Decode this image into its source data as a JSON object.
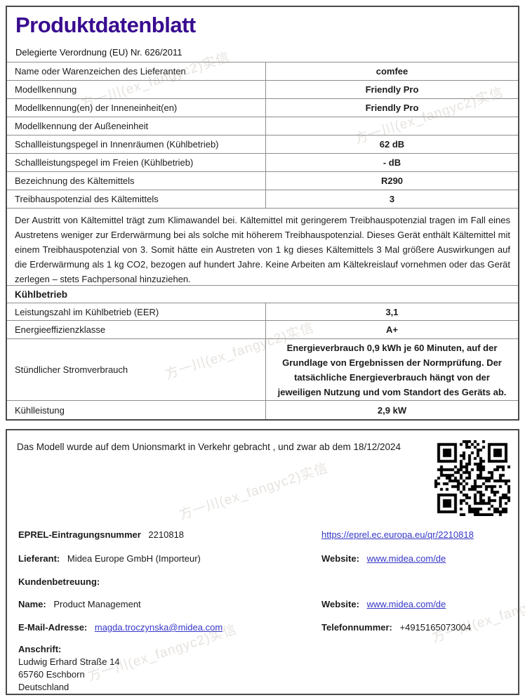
{
  "watermark": {
    "text": "方一川(ex_fangyc2)实信"
  },
  "colors": {
    "title_purple": "#390c8f",
    "link_blue": "#3636c8",
    "border_gray": "#8d8d8d",
    "outer_border": "#4a4a4a"
  },
  "header": {
    "title": "Produktdatenblatt",
    "subtitle": "Delegierte Verordnung (EU) Nr. 626/2011"
  },
  "spec_table": {
    "rows": [
      {
        "label": "Name oder Warenzeichen des Lieferanten",
        "value": "comfee"
      },
      {
        "label": "Modellkennung",
        "value": "Friendly Pro"
      },
      {
        "label": "Modellkennung(en) der Inneneinheit(en)",
        "value": "Friendly Pro"
      },
      {
        "label": "Modellkennung der Außeneinheit",
        "value": ""
      },
      {
        "label": "Schallleistungspegel in Innenräumen (Kühlbetrieb)",
        "value": "62 dB"
      },
      {
        "label": "Schallleistungspegel im Freien (Kühlbetrieb)",
        "value": "- dB"
      },
      {
        "label": "Bezeichnung des Kältemittels",
        "value": "R290"
      },
      {
        "label": "Treibhauspotenzial des Kältemittels",
        "value": "3"
      }
    ],
    "refrigerant_note": "Der Austritt von Kältemittel trägt zum Klimawandel bei. Kältemittel mit geringerem Treibhauspotenzial tragen im Fall eines Austretens weniger zur Erderwärmung bei als solche mit höherem Treibhauspotenzial. Dieses Gerät enthält Kältemittel mit einem Treibhauspotenzial von 3. Somit hätte ein Austreten von 1 kg dieses Kältemittels 3 Mal größere Auswirkungen auf die Erderwärmung als 1 kg CO2, bezogen auf hundert Jahre. Keine Arbeiten am Kältekreislauf vornehmen oder das Gerät zerlegen – stets Fachpersonal hinzuziehen."
  },
  "cooling_section": {
    "header": "Kühlbetrieb",
    "rows": [
      {
        "label": "Leistungszahl im Kühlbetrieb (EER)",
        "value": "3,1"
      },
      {
        "label": "Energieeffizienzklasse",
        "value": "A+"
      },
      {
        "label": "Stündlicher Stromverbrauch",
        "value": "Energieverbrauch 0,9 kWh je 60 Minuten, auf der Grundlage von Ergebnissen der Normprüfung. Der tatsächliche Energieverbrauch hängt von der jeweiligen Nutzung und vom Standort des Geräts ab."
      },
      {
        "label": "Kühlleistung",
        "value": "2,9 kW"
      }
    ]
  },
  "market_info": {
    "statement": "Das Modell wurde auf dem Unionsmarkt in Verkehr gebracht , und zwar ab dem 18/12/2024",
    "qr_icon": "qr-code",
    "eprel_label": "EPREL-Eintragungsnummer",
    "eprel_number": "2210818",
    "eprel_link": "https://eprel.ec.europa.eu/qr/2210818",
    "supplier_label": "Lieferant:",
    "supplier_value": "Midea Europe GmbH (Importeur)",
    "website_label": "Website:",
    "website_value": "www.midea.com/de",
    "customer_care_label": "Kundenbetreuung:",
    "name_label": "Name:",
    "name_value": "Product Management",
    "website2_label": "Website:",
    "website2_value": "www.midea.com/de",
    "email_label": "E-Mail-Adresse:",
    "email_value": "magda.troczynska@midea.com",
    "phone_label": "Telefonnummer:",
    "phone_value": "+4915165073004",
    "address_label": "Anschrift:",
    "address_lines": [
      "Ludwig Erhard Straße 14",
      "65760  Eschborn",
      "Deutschland"
    ]
  }
}
